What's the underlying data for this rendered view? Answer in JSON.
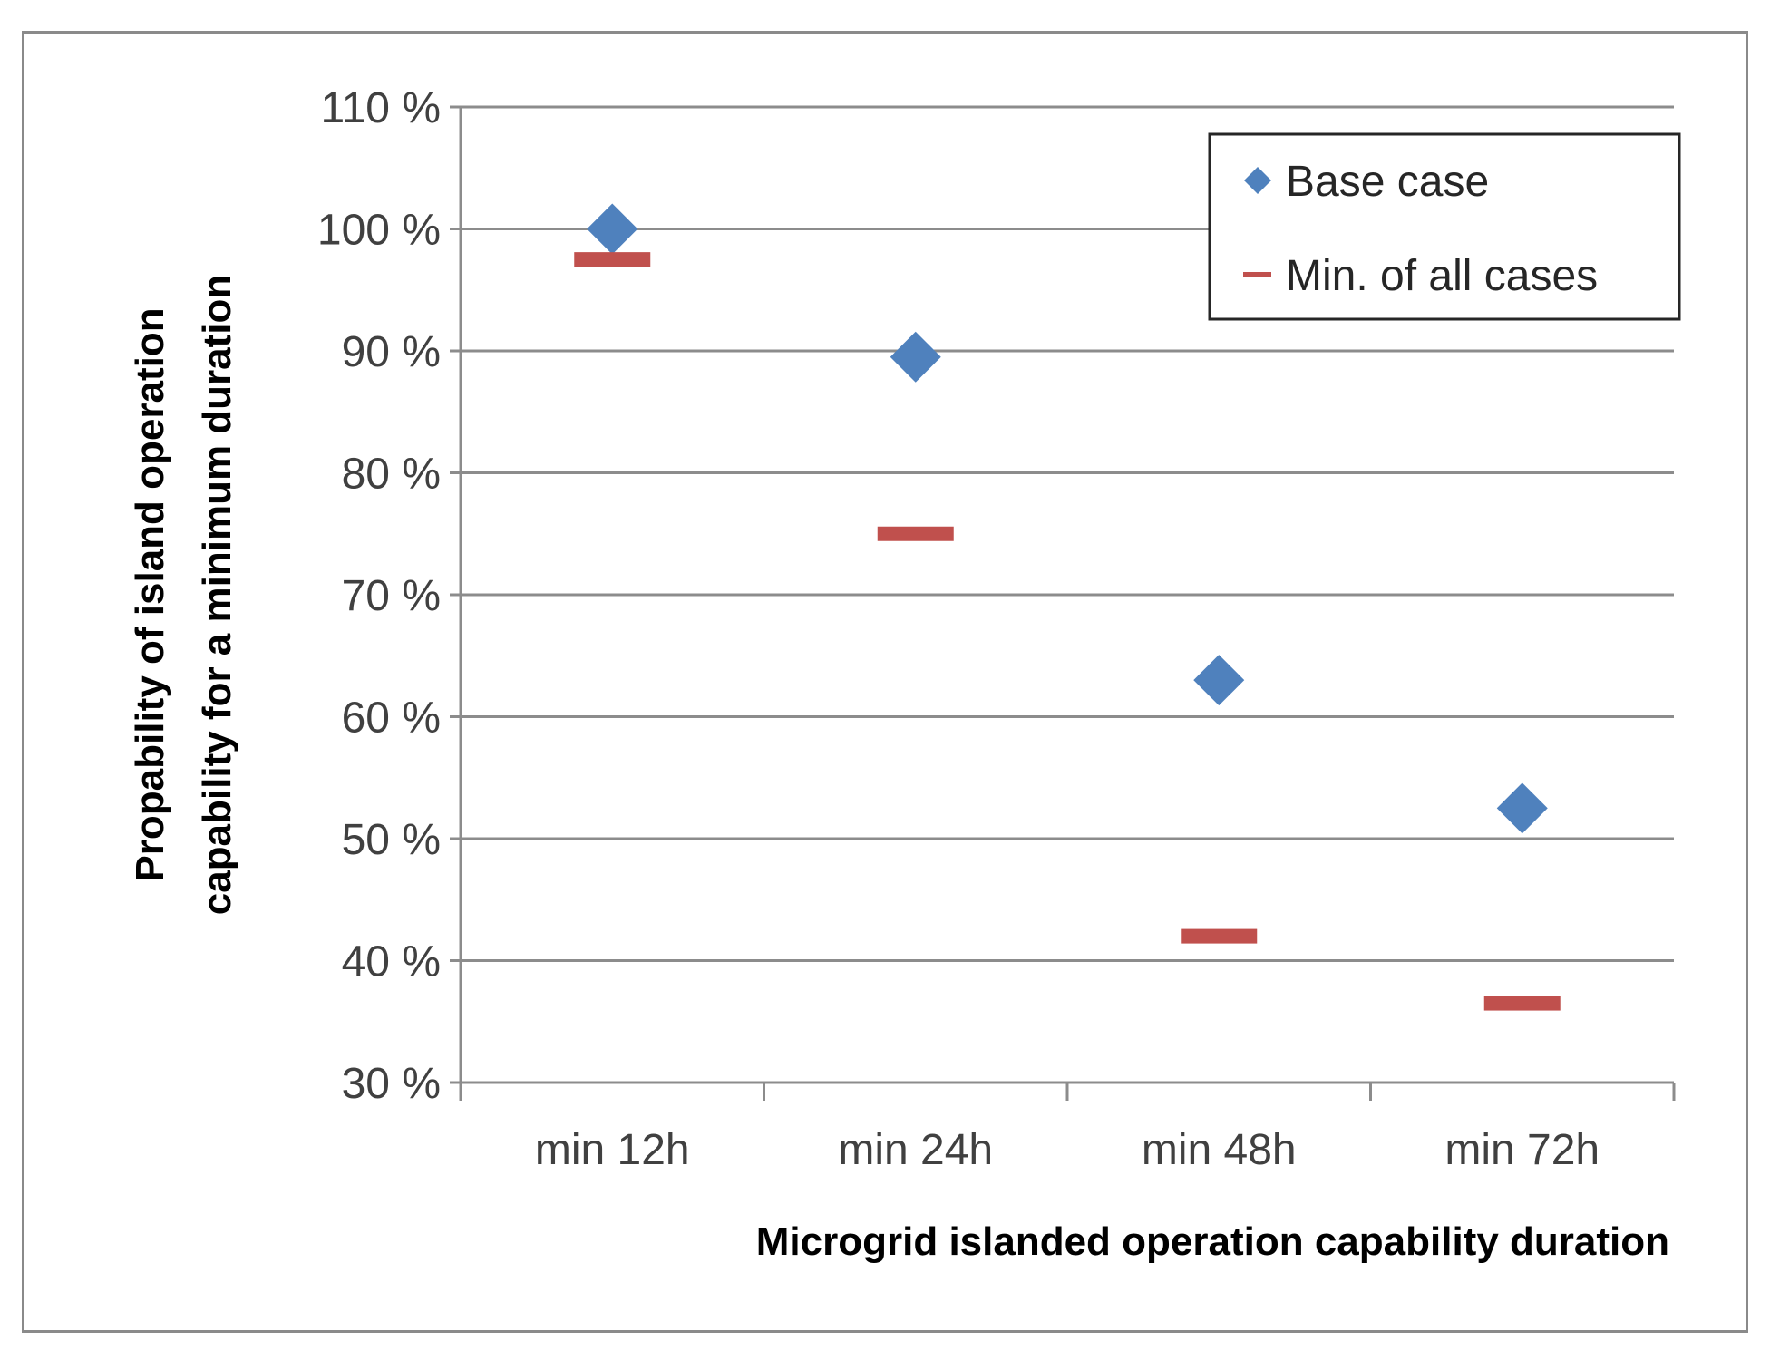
{
  "chart_data": {
    "type": "scatter",
    "categories": [
      "min 12h",
      "min 24h",
      "min 48h",
      "min 72h"
    ],
    "series": [
      {
        "name": "Base case",
        "marker": "diamond",
        "color": "#4f81bd",
        "values": [
          100,
          89.5,
          63,
          52.5
        ]
      },
      {
        "name": "Min. of all cases",
        "marker": "dash",
        "color": "#c0504d",
        "values": [
          97.5,
          75,
          42,
          36.5
        ]
      }
    ],
    "ylim": [
      30,
      110
    ],
    "yticks": [
      30,
      40,
      50,
      60,
      70,
      80,
      90,
      100,
      110
    ],
    "ytick_labels": [
      "30 %",
      "40 %",
      "50 %",
      "60 %",
      "70 %",
      "80 %",
      "90 %",
      "100 %",
      "110 %"
    ],
    "ylabel_line1": "Propability of island operation",
    "ylabel_line2": "capability for a minimum duration",
    "xlabel": "Microgrid islanded operation capability duration",
    "grid": true,
    "legend_position": "top-right"
  }
}
